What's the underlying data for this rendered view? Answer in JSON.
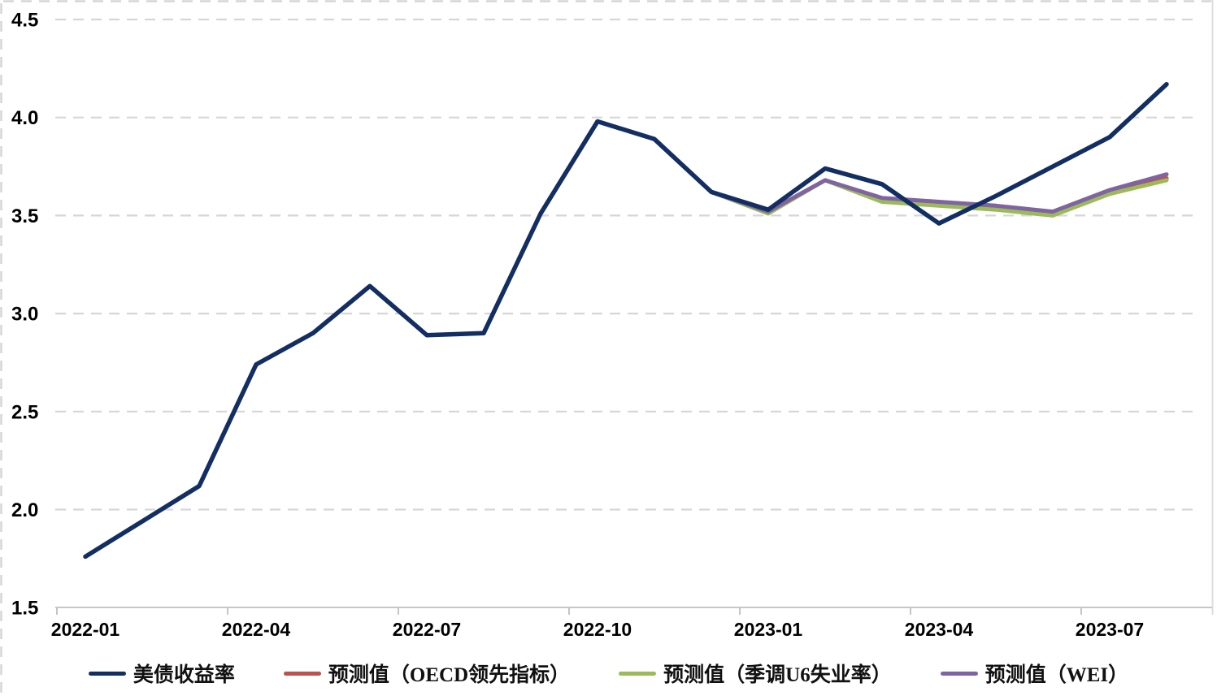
{
  "chart_data": {
    "type": "line",
    "title": "",
    "xlabel": "",
    "ylabel": "",
    "ylim": [
      1.5,
      4.5
    ],
    "y_ticks": [
      4.5,
      4.0,
      3.5,
      3.0,
      2.5,
      2.0,
      1.5
    ],
    "y_tick_labels": [
      "4.5",
      "4.0",
      "3.5",
      "3.0",
      "2.5",
      "2.0",
      "1.5"
    ],
    "x_tick_labels": [
      "2022-01",
      "2022-04",
      "2022-07",
      "2022-10",
      "2023-01",
      "2023-04",
      "2023-07"
    ],
    "categories": [
      "2022-01",
      "2022-02",
      "2022-03",
      "2022-04",
      "2022-05",
      "2022-06",
      "2022-07",
      "2022-08",
      "2022-09",
      "2022-10",
      "2022-11",
      "2022-12",
      "2023-01",
      "2023-02",
      "2023-03",
      "2023-04",
      "2023-05",
      "2023-06",
      "2023-07",
      "2023-08"
    ],
    "grid": "horizontal-dashed",
    "legend_position": "bottom",
    "series": [
      {
        "name": "美债收益率",
        "color": "#132e62",
        "width": 5.5,
        "values": [
          1.76,
          1.94,
          2.12,
          2.74,
          2.9,
          3.14,
          2.89,
          2.9,
          3.51,
          3.98,
          3.89,
          3.62,
          3.53,
          3.74,
          3.66,
          3.46,
          3.6,
          3.75,
          3.9,
          4.17
        ]
      },
      {
        "name": "预测值（OECD领先指标）",
        "color": "#c0504d",
        "width": 5,
        "values": [
          null,
          null,
          null,
          null,
          null,
          null,
          null,
          null,
          null,
          null,
          null,
          3.62,
          3.52,
          3.68,
          3.58,
          3.56,
          3.54,
          3.51,
          3.62,
          3.69
        ]
      },
      {
        "name": "预测值（季调U6失业率）",
        "color": "#9bbb59",
        "width": 5,
        "values": [
          null,
          null,
          null,
          null,
          null,
          null,
          null,
          null,
          null,
          null,
          null,
          3.62,
          3.51,
          3.68,
          3.57,
          3.55,
          3.53,
          3.5,
          3.61,
          3.68
        ]
      },
      {
        "name": "预测值（WEI）",
        "color": "#8064a2",
        "width": 5,
        "values": [
          null,
          null,
          null,
          null,
          null,
          null,
          null,
          null,
          null,
          null,
          null,
          3.62,
          3.52,
          3.68,
          3.59,
          3.57,
          3.55,
          3.52,
          3.63,
          3.71
        ]
      }
    ],
    "draw_order": [
      1,
      2,
      3,
      0
    ]
  },
  "style": {
    "grid_color": "#d6d6d6",
    "axis_color": "#bfbfbf",
    "border_dash_color": "#d6d6d6",
    "text_color": "#000000",
    "background": "#ffffff"
  }
}
